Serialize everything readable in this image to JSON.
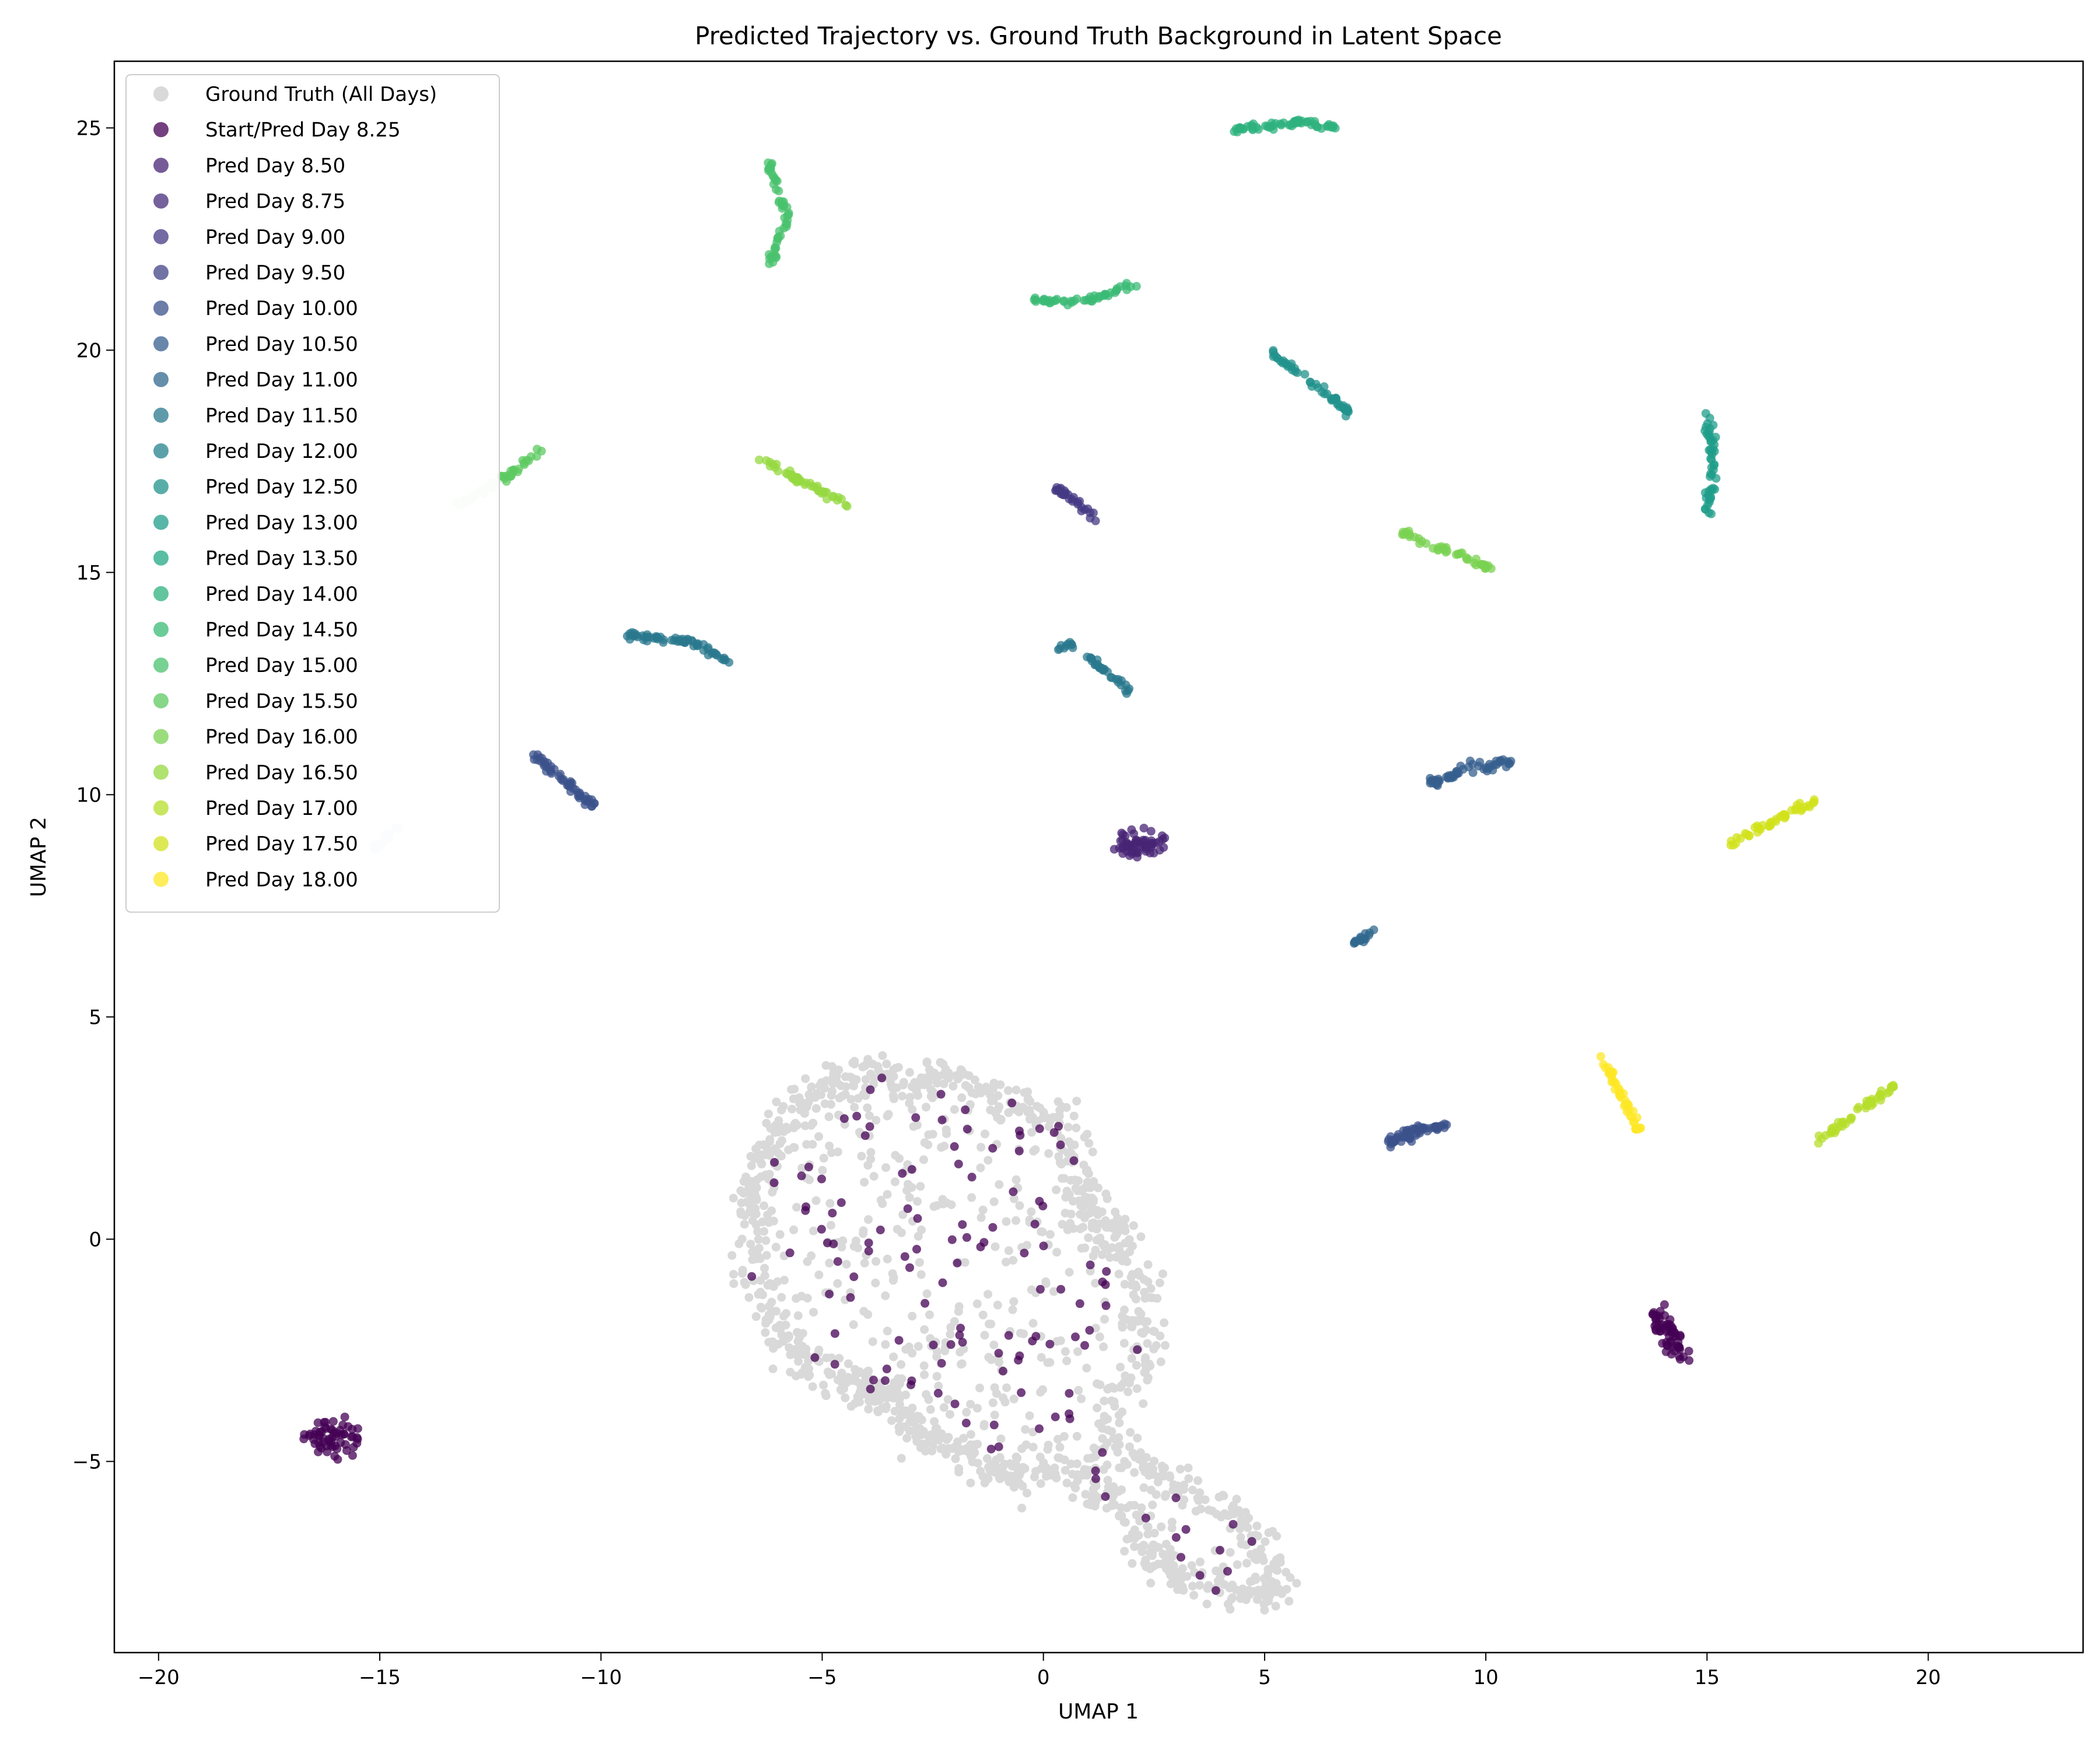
{
  "chart_data": {
    "type": "scatter",
    "title": "Predicted Trajectory vs. Ground Truth Background in Latent Space",
    "xlabel": "UMAP 1",
    "ylabel": "UMAP 2",
    "xlim": [
      -21,
      23.5
    ],
    "ylim": [
      -9.3,
      26.5
    ],
    "xticks": [
      -20,
      -15,
      -10,
      -5,
      0,
      5,
      10,
      15,
      20
    ],
    "yticks": [
      -5,
      0,
      5,
      10,
      15,
      20,
      25
    ],
    "grid": false,
    "legend_position": "top-left",
    "background": {
      "name": "Ground Truth (All Days)",
      "color": "#d9d9d9",
      "outline": [
        [
          -4.4,
          3.7
        ],
        [
          -3.2,
          3.6
        ],
        [
          -2.0,
          3.6
        ],
        [
          -1.0,
          3.2
        ],
        [
          0.6,
          2.6
        ],
        [
          0.8,
          0.9
        ],
        [
          1.6,
          0.2
        ],
        [
          2.4,
          -1.0
        ],
        [
          2.2,
          -3.0
        ],
        [
          1.4,
          -4.4
        ],
        [
          2.4,
          -5.2
        ],
        [
          4.0,
          -6.0
        ],
        [
          5.0,
          -7.0
        ],
        [
          5.2,
          -7.9
        ],
        [
          4.2,
          -8.0
        ],
        [
          2.8,
          -7.6
        ],
        [
          2.2,
          -6.6
        ],
        [
          1.4,
          -5.8
        ],
        [
          0.4,
          -5.2
        ],
        [
          -0.6,
          -5.4
        ],
        [
          -1.8,
          -4.8
        ],
        [
          -2.8,
          -4.4
        ],
        [
          -3.4,
          -3.6
        ],
        [
          -4.0,
          -3.4
        ],
        [
          -5.2,
          -3.0
        ],
        [
          -5.8,
          -2.2
        ],
        [
          -6.6,
          -1.0
        ],
        [
          -6.6,
          0.8
        ],
        [
          -6.2,
          2.0
        ],
        [
          -5.6,
          3.0
        ]
      ],
      "count": 1500
    },
    "series": [
      {
        "name": "Start/Pred Day 8.25",
        "color": "#440154",
        "clusters": [
          {
            "type": "scatter",
            "from": [
              -6.5,
              -5.5
            ],
            "to": [
              5,
              4
            ],
            "count": 130,
            "jitter": 0
          },
          {
            "type": "blob",
            "from": [
              -16.5,
              -4.4
            ],
            "to": [
              -15.5,
              -4.5
            ],
            "count": 60,
            "jitter": 0.2
          },
          {
            "type": "blob",
            "from": [
              13.8,
              -1.6
            ],
            "to": [
              14.4,
              -2.6
            ],
            "count": 60,
            "jitter": 0.12
          }
        ]
      },
      {
        "name": "Pred Day 8.50",
        "color": "#482475",
        "clusters": [
          {
            "type": "blob",
            "from": [
              1.8,
              8.9
            ],
            "to": [
              2.7,
              8.9
            ],
            "count": 60,
            "jitter": 0.15
          }
        ]
      },
      {
        "name": "Pred Day 8.75",
        "color": "#472c7a",
        "clusters": []
      },
      {
        "name": "Pred Day 9.00",
        "color": "#443a83",
        "clusters": [
          {
            "type": "line",
            "from": [
              0.3,
              16.9
            ],
            "to": [
              1.2,
              16.2
            ],
            "count": 30,
            "jitter": 0.05
          }
        ]
      },
      {
        "name": "Pred Day 9.50",
        "color": "#414487",
        "clusters": []
      },
      {
        "name": "Pred Day 10.00",
        "color": "#3b528b",
        "clusters": [
          {
            "type": "line",
            "from": [
              7.8,
              2.1
            ],
            "to": [
              8.5,
              2.5
            ],
            "count": 40,
            "jitter": 0.08
          },
          {
            "type": "line",
            "from": [
              8.5,
              2.5
            ],
            "to": [
              9.2,
              2.55
            ],
            "count": 20,
            "jitter": 0.05
          },
          {
            "type": "line",
            "from": [
              -11.5,
              10.9
            ],
            "to": [
              -10.1,
              9.7
            ],
            "count": 50,
            "jitter": 0.05
          }
        ]
      },
      {
        "name": "Pred Day 10.50",
        "color": "#355f8d",
        "clusters": [
          {
            "type": "line",
            "from": [
              8.6,
              10.2
            ],
            "to": [
              9.6,
              10.6
            ],
            "count": 30,
            "jitter": 0.05
          },
          {
            "type": "line",
            "from": [
              9.6,
              10.6
            ],
            "to": [
              10.6,
              10.7
            ],
            "count": 25,
            "jitter": 0.05
          }
        ]
      },
      {
        "name": "Pred Day 11.00",
        "color": "#31688e",
        "clusters": [
          {
            "type": "line",
            "from": [
              7.0,
              6.6
            ],
            "to": [
              7.4,
              6.9
            ],
            "count": 18,
            "jitter": 0.04
          }
        ]
      },
      {
        "name": "Pred Day 11.50",
        "color": "#2a788e",
        "clusters": [
          {
            "type": "line",
            "from": [
              0.3,
              13.3
            ],
            "to": [
              0.7,
              13.4
            ],
            "count": 10,
            "jitter": 0.04
          },
          {
            "type": "line",
            "from": [
              1.0,
              13.1
            ],
            "to": [
              2.0,
              12.3
            ],
            "count": 30,
            "jitter": 0.04
          },
          {
            "type": "line",
            "from": [
              -9.4,
              13.6
            ],
            "to": [
              -8.0,
              13.45
            ],
            "count": 40,
            "jitter": 0.04
          },
          {
            "type": "line",
            "from": [
              -8.0,
              13.45
            ],
            "to": [
              -7.1,
              13.0
            ],
            "count": 22,
            "jitter": 0.04
          }
        ]
      },
      {
        "name": "Pred Day 12.00",
        "color": "#26828e",
        "clusters": []
      },
      {
        "name": "Pred Day 12.50",
        "color": "#21918c",
        "clusters": [
          {
            "type": "line",
            "from": [
              5.1,
              20.0
            ],
            "to": [
              6.9,
              18.6
            ],
            "count": 50,
            "jitter": 0.04
          }
        ]
      },
      {
        "name": "Pred Day 13.00",
        "color": "#1f9e89",
        "clusters": [
          {
            "type": "line",
            "from": [
              15.0,
              18.6
            ],
            "to": [
              15.15,
              17.5
            ],
            "count": 25,
            "jitter": 0.04
          },
          {
            "type": "line",
            "from": [
              15.15,
              17.5
            ],
            "to": [
              15.0,
              16.3
            ],
            "count": 25,
            "jitter": 0.04
          }
        ]
      },
      {
        "name": "Pred Day 13.50",
        "color": "#22a884",
        "clusters": []
      },
      {
        "name": "Pred Day 14.00",
        "color": "#2db27d",
        "clusters": [
          {
            "type": "line",
            "from": [
              4.3,
              24.95
            ],
            "to": [
              5.8,
              25.15
            ],
            "count": 40,
            "jitter": 0.04
          },
          {
            "type": "line",
            "from": [
              5.8,
              25.15
            ],
            "to": [
              6.6,
              25.0
            ],
            "count": 20,
            "jitter": 0.04
          }
        ]
      },
      {
        "name": "Pred Day 14.50",
        "color": "#3bbb75",
        "clusters": [
          {
            "type": "line",
            "from": [
              -0.2,
              21.1
            ],
            "to": [
              1.0,
              21.1
            ],
            "count": 25,
            "jitter": 0.04
          },
          {
            "type": "line",
            "from": [
              1.0,
              21.1
            ],
            "to": [
              2.1,
              21.5
            ],
            "count": 25,
            "jitter": 0.04
          }
        ]
      },
      {
        "name": "Pred Day 15.00",
        "color": "#4ac16d",
        "clusters": [
          {
            "type": "line",
            "from": [
              -6.2,
              24.2
            ],
            "to": [
              -5.8,
              23.0
            ],
            "count": 30,
            "jitter": 0.04
          },
          {
            "type": "line",
            "from": [
              -5.8,
              23.0
            ],
            "to": [
              -6.2,
              21.9
            ],
            "count": 25,
            "jitter": 0.04
          }
        ]
      },
      {
        "name": "Pred Day 15.50",
        "color": "#5ec962",
        "clusters": [
          {
            "type": "line",
            "from": [
              -12.2,
              17.1
            ],
            "to": [
              -11.3,
              17.8
            ],
            "count": 25,
            "jitter": 0.04
          }
        ]
      },
      {
        "name": "Pred Day 16.00",
        "color": "#7ad151",
        "clusters": [
          {
            "type": "line",
            "from": [
              8.1,
              15.9
            ],
            "to": [
              10.1,
              15.1
            ],
            "count": 45,
            "jitter": 0.04
          }
        ]
      },
      {
        "name": "Pred Day 16.50",
        "color": "#95d840",
        "clusters": [
          {
            "type": "line",
            "from": [
              -6.5,
              17.6
            ],
            "to": [
              -4.4,
              16.5
            ],
            "count": 50,
            "jitter": 0.04
          }
        ]
      },
      {
        "name": "Pred Day 17.00",
        "color": "#b5de2b",
        "clusters": [
          {
            "type": "line",
            "from": [
              17.5,
              2.2
            ],
            "to": [
              19.3,
              3.5
            ],
            "count": 45,
            "jitter": 0.04
          }
        ]
      },
      {
        "name": "Pred Day 17.50",
        "color": "#d2e21b",
        "clusters": [
          {
            "type": "line",
            "from": [
              15.5,
              8.9
            ],
            "to": [
              17.5,
              9.9
            ],
            "count": 45,
            "jitter": 0.04
          }
        ]
      },
      {
        "name": "Pred Day 18.00",
        "color": "#fde725",
        "clusters": [
          {
            "type": "line",
            "from": [
              12.6,
              4.15
            ],
            "to": [
              13.1,
              3.2
            ],
            "count": 25,
            "jitter": 0.04
          },
          {
            "type": "line",
            "from": [
              13.1,
              3.2
            ],
            "to": [
              13.5,
              2.4
            ],
            "count": 20,
            "jitter": 0.04
          }
        ]
      }
    ],
    "faint_segments": [
      {
        "color": "#e3f1df",
        "from": [
          -13.3,
          16.5
        ],
        "to": [
          -12.2,
          17.1
        ],
        "count": 25
      },
      {
        "color": "#dce9ef",
        "from": [
          -15.2,
          8.7
        ],
        "to": [
          -14.6,
          9.3
        ],
        "count": 15
      }
    ]
  }
}
